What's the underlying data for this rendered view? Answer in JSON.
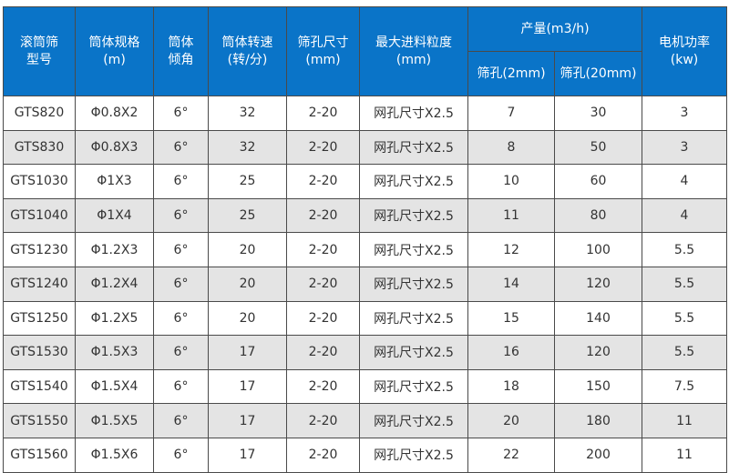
{
  "header": {
    "model": [
      "滚筒筛",
      "型号"
    ],
    "spec": [
      "筒体规格",
      "(m)"
    ],
    "angle": [
      "筒体",
      "倾角"
    ],
    "speed": [
      "筒体转速",
      "(转/分)"
    ],
    "hole": [
      "筛孔尺寸",
      "(mm)"
    ],
    "feed": [
      "最大进料粒度",
      "(mm)"
    ],
    "output": "产量(m3/h)",
    "output_sub": [
      "筛孔(2mm)",
      "筛孔(20mm)"
    ],
    "power": [
      "电机功率",
      "(kw)"
    ]
  },
  "rows": [
    [
      "GTS820",
      "Φ0.8X2",
      "6°",
      "32",
      "2-20",
      "网孔尺寸X2.5",
      "7",
      "30",
      "3"
    ],
    [
      "GTS830",
      "Φ0.8X3",
      "6°",
      "32",
      "2-20",
      "网孔尺寸X2.5",
      "8",
      "50",
      "3"
    ],
    [
      "GTS1030",
      "Φ1X3",
      "6°",
      "25",
      "2-20",
      "网孔尺寸X2.5",
      "10",
      "60",
      "4"
    ],
    [
      "GTS1040",
      "Φ1X4",
      "6°",
      "25",
      "2-20",
      "网孔尺寸X2.5",
      "11",
      "80",
      "4"
    ],
    [
      "GTS1230",
      "Φ1.2X3",
      "6°",
      "20",
      "2-20",
      "网孔尺寸X2.5",
      "12",
      "100",
      "5.5"
    ],
    [
      "GTS1240",
      "Φ1.2X4",
      "6°",
      "20",
      "2-20",
      "网孔尺寸X2.5",
      "14",
      "120",
      "5.5"
    ],
    [
      "GTS1250",
      "Φ1.2X5",
      "6°",
      "20",
      "2-20",
      "网孔尺寸X2.5",
      "15",
      "140",
      "5.5"
    ],
    [
      "GTS1530",
      "Φ1.5X3",
      "6°",
      "17",
      "2-20",
      "网孔尺寸X2.5",
      "16",
      "120",
      "5.5"
    ],
    [
      "GTS1540",
      "Φ1.5X4",
      "6°",
      "17",
      "2-20",
      "网孔尺寸X2.5",
      "18",
      "150",
      "7.5"
    ],
    [
      "GTS1550",
      "Φ1.5X5",
      "6°",
      "17",
      "2-20",
      "网孔尺寸X2.5",
      "20",
      "180",
      "11"
    ],
    [
      "GTS1560",
      "Φ1.5X6",
      "6°",
      "17",
      "2-20",
      "网孔尺寸X2.5",
      "22",
      "200",
      "11"
    ]
  ],
  "colors": {
    "header_bg": "#0a74c8",
    "alt_row": "#e4e4e4"
  }
}
